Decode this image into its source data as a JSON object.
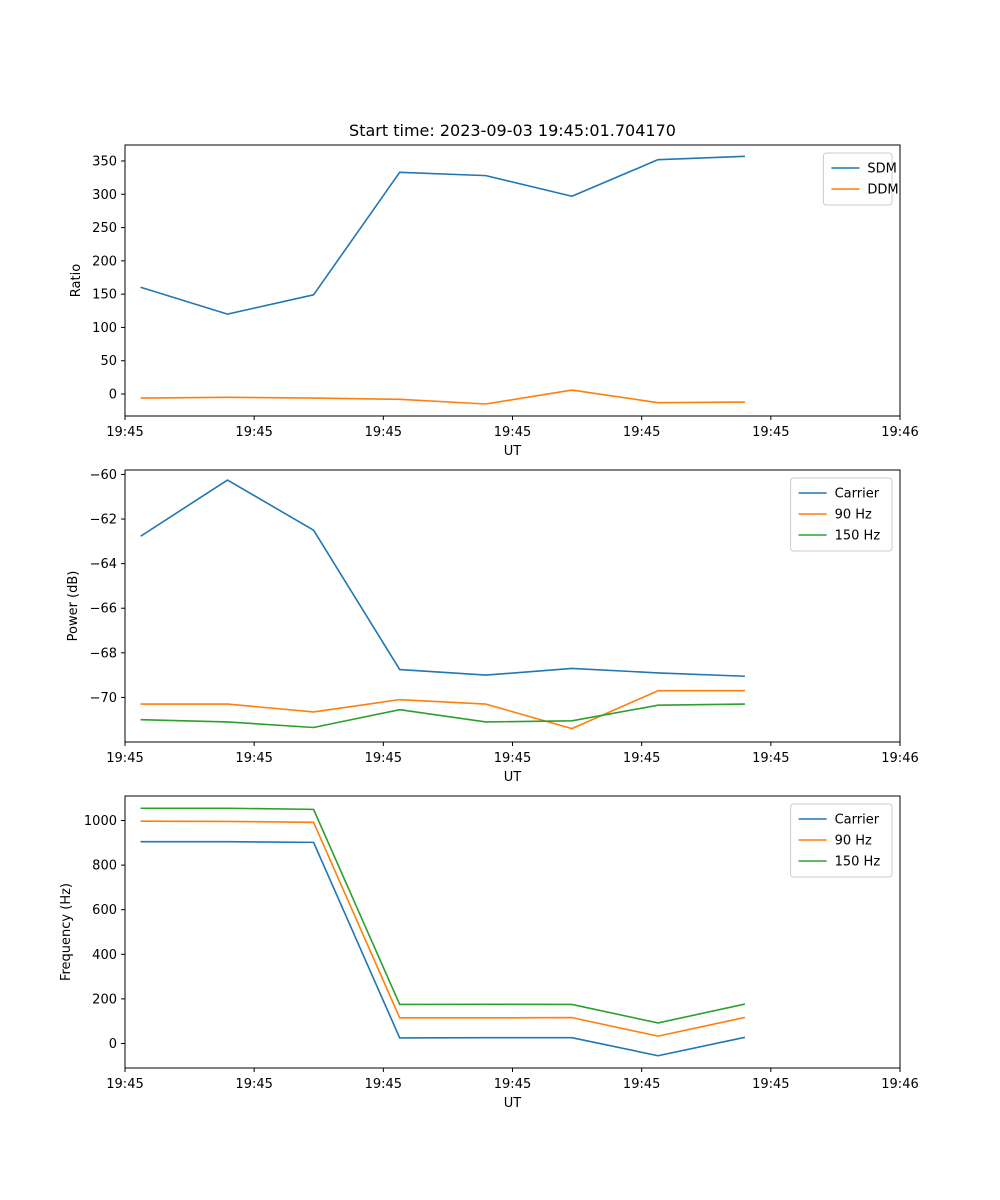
{
  "chart_data": [
    {
      "type": "line",
      "title": "Start time: 2023-09-03 19:45:01.704170",
      "xlabel": "UT",
      "ylabel": "Ratio",
      "x": [
        1,
        2,
        3,
        4,
        5,
        6,
        7,
        8
      ],
      "xlim": [
        0.81,
        9.81
      ],
      "xticks": [
        0.81,
        2.31,
        3.81,
        5.31,
        6.81,
        8.31,
        9.81
      ],
      "xtick_labels": [
        "19:45",
        "19:45",
        "19:45",
        "19:45",
        "19:45",
        "19:45",
        "19:46"
      ],
      "ylim": [
        -33,
        374
      ],
      "yticks": [
        0,
        50,
        100,
        150,
        200,
        250,
        300,
        350
      ],
      "ytick_labels": [
        "0",
        "50",
        "100",
        "150",
        "200",
        "250",
        "300",
        "350"
      ],
      "legend_position": "top-right",
      "series": [
        {
          "name": "SDM",
          "color": "#1f77b4",
          "values": [
            160,
            120,
            149,
            333,
            328,
            297,
            352,
            357
          ]
        },
        {
          "name": "DDM",
          "color": "#ff7f0e",
          "values": [
            -6,
            -5,
            -6,
            -8,
            -15,
            6,
            -13,
            -12
          ]
        }
      ]
    },
    {
      "type": "line",
      "title": "",
      "xlabel": "UT",
      "ylabel": "Power (dB)",
      "x": [
        1,
        2,
        3,
        4,
        5,
        6,
        7,
        8
      ],
      "xlim": [
        0.81,
        9.81
      ],
      "xticks": [
        0.81,
        2.31,
        3.81,
        5.31,
        6.81,
        8.31,
        9.81
      ],
      "xtick_labels": [
        "19:45",
        "19:45",
        "19:45",
        "19:45",
        "19:45",
        "19:45",
        "19:46"
      ],
      "ylim": [
        -72.0,
        -59.8
      ],
      "yticks": [
        -70,
        -68,
        -66,
        -64,
        -62,
        -60
      ],
      "ytick_labels": [
        "−70",
        "−68",
        "−66",
        "−64",
        "−62",
        "−60"
      ],
      "legend_position": "top-right",
      "series": [
        {
          "name": "Carrier",
          "color": "#1f77b4",
          "values": [
            -62.75,
            -60.25,
            -62.5,
            -68.75,
            -69.0,
            -68.7,
            -68.9,
            -69.05
          ]
        },
        {
          "name": "90 Hz",
          "color": "#ff7f0e",
          "values": [
            -70.3,
            -70.3,
            -70.65,
            -70.1,
            -70.3,
            -71.4,
            -69.7,
            -69.7
          ]
        },
        {
          "name": "150 Hz",
          "color": "#2ca02c",
          "values": [
            -71.0,
            -71.1,
            -71.35,
            -70.55,
            -71.1,
            -71.05,
            -70.35,
            -70.3
          ]
        }
      ]
    },
    {
      "type": "line",
      "title": "",
      "xlabel": "UT",
      "ylabel": "Frequency (Hz)",
      "x": [
        1,
        2,
        3,
        4,
        5,
        6,
        7,
        8
      ],
      "xlim": [
        0.81,
        9.81
      ],
      "xticks": [
        0.81,
        2.31,
        3.81,
        5.31,
        6.81,
        8.31,
        9.81
      ],
      "xtick_labels": [
        "19:45",
        "19:45",
        "19:45",
        "19:45",
        "19:45",
        "19:45",
        "19:46"
      ],
      "ylim": [
        -110,
        1110
      ],
      "yticks": [
        0,
        200,
        400,
        600,
        800,
        1000
      ],
      "ytick_labels": [
        "0",
        "200",
        "400",
        "600",
        "800",
        "1000"
      ],
      "legend_position": "top-right",
      "series": [
        {
          "name": "Carrier",
          "color": "#1f77b4",
          "values": [
            905,
            905,
            902,
            25,
            26,
            26,
            -55,
            27
          ]
        },
        {
          "name": "90 Hz",
          "color": "#ff7f0e",
          "values": [
            997,
            996,
            992,
            115,
            115,
            116,
            33,
            116
          ]
        },
        {
          "name": "150 Hz",
          "color": "#2ca02c",
          "values": [
            1055,
            1055,
            1050,
            175,
            176,
            175,
            92,
            176
          ]
        }
      ]
    }
  ]
}
